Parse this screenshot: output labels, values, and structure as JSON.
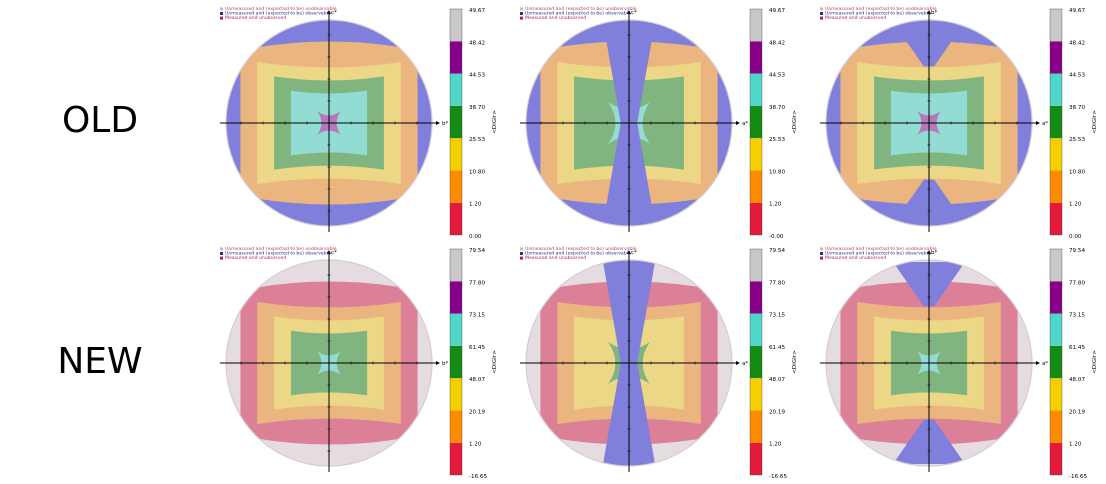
{
  "row_labels": {
    "old": "OLD",
    "new": "NEW"
  },
  "legend": [
    {
      "label": "Unmeasured and (expected to be) unobservable",
      "color": "#c8b6c0"
    },
    {
      "label": "Unmeasured and (expected to be) observable",
      "color": "#2d2d8f"
    },
    {
      "label": "Measured and unobserved",
      "color": "#b01f5a"
    }
  ],
  "colorbar_title": "<DiGIr>",
  "colorbar_colors": [
    "#e31a3c",
    "#ff8c00",
    "#f5d000",
    "#138a13",
    "#4fd6c8",
    "#880088",
    "#c8c8c8"
  ],
  "chart_data": [
    {
      "type": "heatmap",
      "row": "OLD",
      "panel": 1,
      "axis_labels": {
        "vertical": "c*",
        "horizontal": "b*"
      },
      "colorbar_ticks": [
        "49.67",
        "48.42",
        "44.53",
        "38.70",
        "25.53",
        "10.80",
        "1.20",
        "0.00"
      ],
      "present_bins": [
        1,
        2,
        3,
        4,
        5
      ],
      "blue_region": "outer-top-bottom"
    },
    {
      "type": "heatmap",
      "row": "OLD",
      "panel": 2,
      "axis_labels": {
        "vertical": "c*",
        "horizontal": "a*"
      },
      "colorbar_ticks": [
        "49.67",
        "48.42",
        "44.53",
        "38.70",
        "25.53",
        "10.80",
        "1.20",
        "-0.00"
      ],
      "present_bins": [
        1,
        2,
        3,
        4
      ],
      "blue_region": "vertical-band-plus-sides"
    },
    {
      "type": "heatmap",
      "row": "OLD",
      "panel": 3,
      "axis_labels": {
        "vertical": "b*",
        "horizontal": "a*"
      },
      "colorbar_ticks": [
        "49.67",
        "48.42",
        "44.53",
        "38.70",
        "25.53",
        "10.80",
        "1.20",
        "0.00"
      ],
      "present_bins": [
        1,
        2,
        3,
        4,
        5
      ],
      "blue_region": "hourglass"
    },
    {
      "type": "heatmap",
      "row": "NEW",
      "panel": 1,
      "axis_labels": {
        "vertical": "c*",
        "horizontal": "b*"
      },
      "colorbar_ticks": [
        "79.54",
        "77.80",
        "73.15",
        "61.45",
        "48.07",
        "20.19",
        "1.20",
        "-16.65"
      ],
      "present_bins": [
        0,
        1,
        2,
        3,
        4
      ],
      "blue_region": "none"
    },
    {
      "type": "heatmap",
      "row": "NEW",
      "panel": 2,
      "axis_labels": {
        "vertical": "c*",
        "horizontal": "a*"
      },
      "colorbar_ticks": [
        "79.54",
        "77.80",
        "73.15",
        "61.45",
        "48.07",
        "20.19",
        "1.20",
        "-16.65"
      ],
      "present_bins": [
        0,
        1,
        2,
        3
      ],
      "blue_region": "vertical-band"
    },
    {
      "type": "heatmap",
      "row": "NEW",
      "panel": 3,
      "axis_labels": {
        "vertical": "b*",
        "horizontal": "a*"
      },
      "colorbar_ticks": [
        "79.54",
        "77.80",
        "73.15",
        "61.45",
        "48.07",
        "20.19",
        "1.20",
        "-16.65"
      ],
      "present_bins": [
        0,
        1,
        2,
        3,
        4
      ],
      "blue_region": "hourglass"
    }
  ]
}
